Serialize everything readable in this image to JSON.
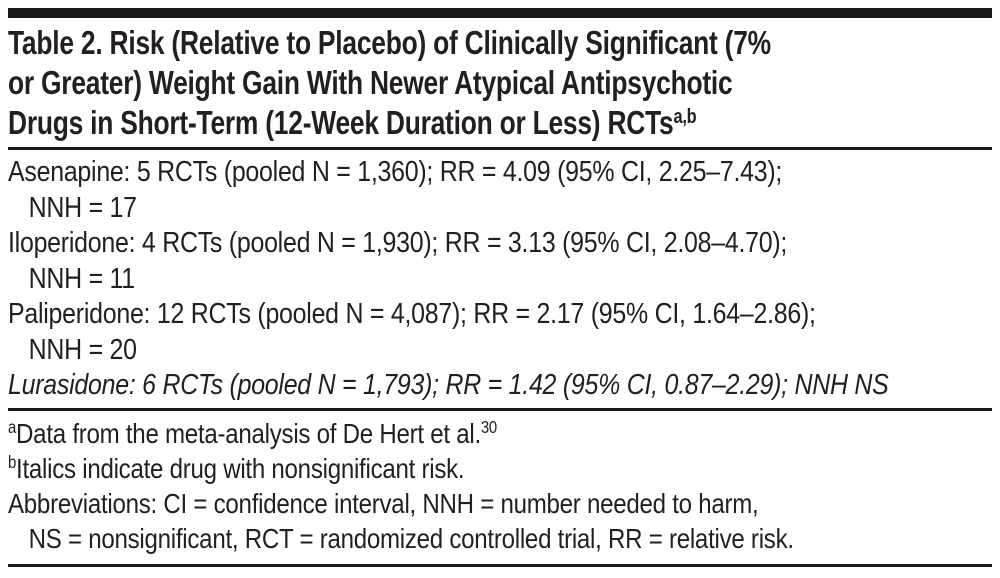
{
  "page": {
    "background": "#ffffff",
    "text_color": "#231f20",
    "rule_color": "#1a1a1a"
  },
  "table": {
    "title_lines": [
      "Table 2. Risk (Relative to Placebo) of Clinically Significant (7%",
      "or Greater) Weight Gain With Newer Atypical Antipsychotic",
      "Drugs in Short-Term (12-Week Duration or Less) RCTs"
    ],
    "title_superscript": "a,b",
    "rows": [
      {
        "line1": "Asenapine: 5 RCTs (pooled N = 1,360); RR = 4.09 (95% CI, 2.25–7.43);",
        "line2": "NNH = 17",
        "italic": false
      },
      {
        "line1": "Iloperidone: 4 RCTs (pooled N = 1,930); RR = 3.13 (95% CI, 2.08–4.70);",
        "line2": "NNH = 11",
        "italic": false
      },
      {
        "line1": "Paliperidone: 12 RCTs (pooled N = 4,087); RR = 2.17 (95% CI, 1.64–2.86);",
        "line2": "NNH = 20",
        "italic": false
      },
      {
        "line1": "Lurasidone: 6 RCTs (pooled N = 1,793); RR = 1.42 (95% CI, 0.87–2.29); NNH NS",
        "line2": "",
        "italic": true
      }
    ],
    "footnotes": {
      "a_marker": "a",
      "a_text": "Data from the meta-analysis of De Hert et al.",
      "a_ref": "30",
      "b_marker": "b",
      "b_text": "Italics indicate drug with nonsignificant risk.",
      "abbrev_line1": "Abbreviations: CI = confidence interval, NNH = number needed to harm,",
      "abbrev_line2": "NS = nonsignificant, RCT = randomized controlled trial, RR = relative risk."
    }
  }
}
